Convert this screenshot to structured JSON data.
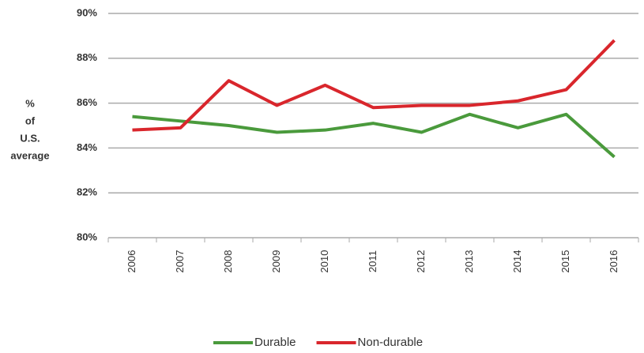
{
  "chart_data": {
    "type": "line",
    "y_label": [
      "%",
      "of",
      "U.S.",
      "average"
    ],
    "categories": [
      "2006",
      "2007",
      "2008",
      "2009",
      "2010",
      "2011",
      "2012",
      "2013",
      "2014",
      "2015",
      "2016"
    ],
    "series": [
      {
        "name": "Durable",
        "color": "#4a9a3c",
        "values": [
          85.4,
          85.2,
          85.0,
          84.7,
          84.8,
          85.1,
          84.7,
          85.5,
          84.9,
          85.5,
          83.6
        ]
      },
      {
        "name": "Non-durable",
        "color": "#d9262c",
        "values": [
          84.8,
          84.9,
          87.0,
          85.9,
          86.8,
          85.8,
          85.9,
          85.9,
          86.1,
          86.6,
          88.8
        ]
      }
    ],
    "ylim": [
      80,
      90
    ],
    "yticks": [
      {
        "value": 80,
        "label": "80%"
      },
      {
        "value": 82,
        "label": "82%"
      },
      {
        "value": 84,
        "label": "84%"
      },
      {
        "value": 86,
        "label": "86%"
      },
      {
        "value": 88,
        "label": "88%"
      },
      {
        "value": 90,
        "label": "90%"
      }
    ],
    "grid": true,
    "legend": "bottom"
  }
}
